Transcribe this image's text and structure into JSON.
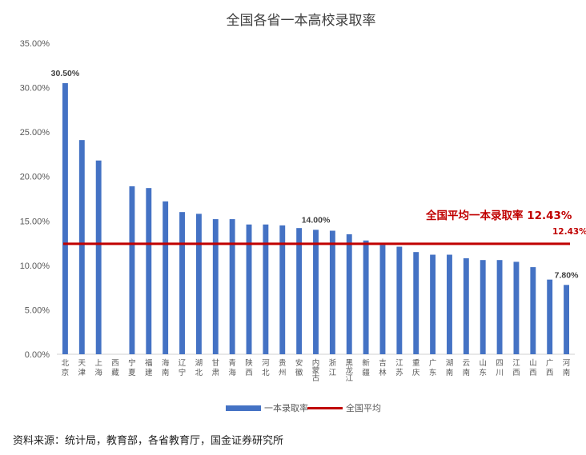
{
  "chart_data": {
    "type": "bar",
    "title": "全国各省一本高校录取率",
    "categories": [
      "北京",
      "天津",
      "上海",
      "西藏",
      "宁夏",
      "福建",
      "海南",
      "辽宁",
      "湖北",
      "甘肃",
      "青海",
      "陕西",
      "河北",
      "贵州",
      "安徽",
      "内蒙古",
      "浙江",
      "黑龙江",
      "新疆",
      "吉林",
      "江苏",
      "重庆",
      "广东",
      "湖南",
      "云南",
      "山东",
      "四川",
      "江西",
      "山西",
      "广西",
      "河南"
    ],
    "series": [
      {
        "name": "一本录取率",
        "color": "#4472c4",
        "values": [
          30.5,
          24.1,
          21.8,
          null,
          18.9,
          18.7,
          17.2,
          16.0,
          15.8,
          15.2,
          15.2,
          14.6,
          14.6,
          14.5,
          14.2,
          14.0,
          13.9,
          13.5,
          12.8,
          12.3,
          12.1,
          11.5,
          11.2,
          11.2,
          10.8,
          10.6,
          10.6,
          10.4,
          9.8,
          8.4,
          7.8
        ]
      }
    ],
    "average": {
      "name": "全国平均",
      "value": 12.43,
      "color": "#c00000"
    },
    "y_ticks": [
      "0.00%",
      "5.00%",
      "10.00%",
      "15.00%",
      "20.00%",
      "25.00%",
      "30.00%",
      "35.00%"
    ],
    "ylim": [
      0,
      35
    ],
    "data_labels": [
      {
        "category": "北京",
        "text": "30.50%"
      },
      {
        "category": "内蒙古",
        "text": "14.00%"
      },
      {
        "category": "河南",
        "text": "7.80%"
      }
    ],
    "annotation": {
      "text": "全国平均一本录取率 12.43%",
      "value_text": "12.43%"
    },
    "legend": {
      "position": "bottom",
      "items": [
        "一本录取率",
        "全国平均"
      ]
    },
    "grid": false
  },
  "source": "资料来源：统计局，教育部，各省教育厅，国金证券研究所"
}
